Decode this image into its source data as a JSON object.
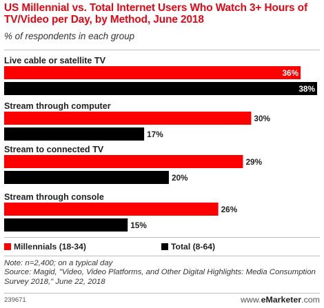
{
  "header": {
    "title": "US Millennial vs. Total Internet Users Who Watch 3+ Hours of TV/Video per Day, by Method, June 2018",
    "subtitle": "% of respondents in each group"
  },
  "footer": {
    "note": "Note: n=2,400; on a typical day",
    "source": "Source: Magid, \"Video, Video Platforms, and Other Digital Highlights: Media Consumption Survey 2018,\" June 22, 2018",
    "chart_id": "239671",
    "brand_prefix": "www.",
    "brand_name": "eMarketer",
    "brand_suffix": ".com"
  },
  "chart_data": {
    "type": "bar",
    "orientation": "horizontal",
    "categories": [
      "Live cable or satellite TV",
      "Stream through computer",
      "Stream to connected TV",
      "Stream through console"
    ],
    "series": [
      {
        "name": "Millennials (18-34)",
        "color": "#ff0000",
        "values": [
          36,
          30,
          29,
          26
        ],
        "labels": [
          "36%",
          "30%",
          "29%",
          "26%"
        ]
      },
      {
        "name": "Total (8-64)",
        "color": "#000000",
        "values": [
          38,
          17,
          20,
          15
        ],
        "labels": [
          "38%",
          "17%",
          "20%",
          "15%"
        ]
      }
    ],
    "xlim": [
      0,
      38
    ],
    "grid": false,
    "legend": "bottom"
  }
}
